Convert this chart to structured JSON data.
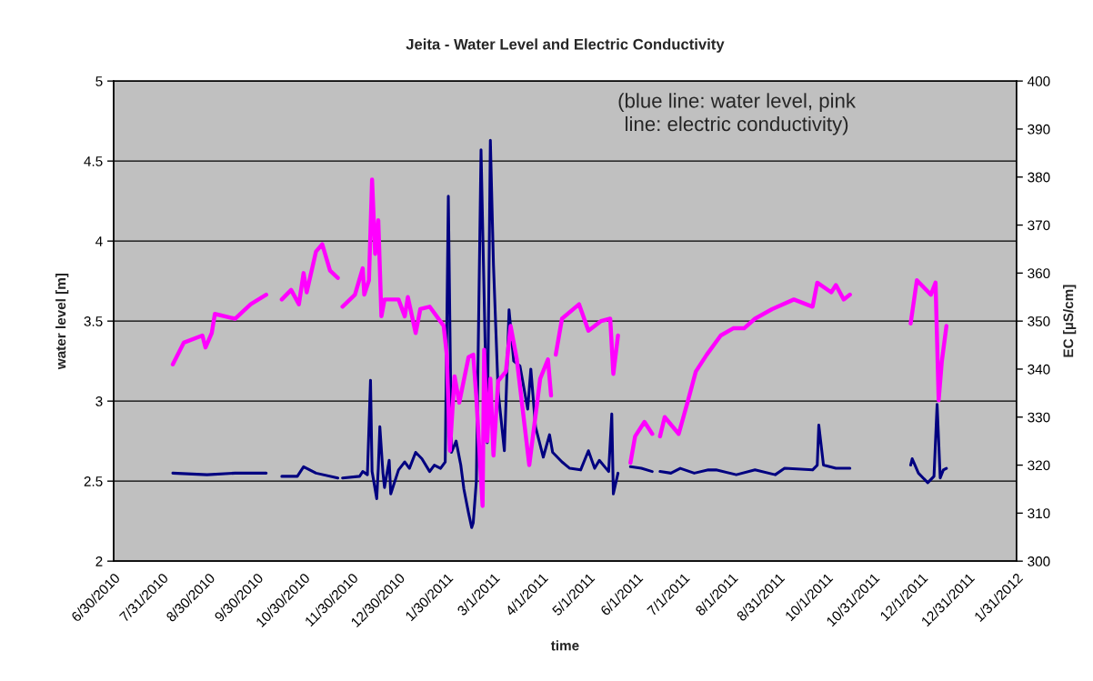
{
  "chart_data": {
    "type": "line",
    "title": "Jeita - Water Level and Electric Conductivity",
    "xlabel": "time",
    "ylabel": "water level [m]",
    "y2label": "EC [µS/cm]",
    "annotations": [
      "(blue line: water level, pink\nline: electric conductivity)"
    ],
    "xlim": [
      "2010-06-30",
      "2012-01-31"
    ],
    "xticks": [
      {
        "value": "2010-06-30",
        "label": "6/30/2010"
      },
      {
        "value": "2010-07-31",
        "label": "7/31/2010"
      },
      {
        "value": "2010-08-30",
        "label": "8/30/2010"
      },
      {
        "value": "2010-09-30",
        "label": "9/30/2010"
      },
      {
        "value": "2010-10-30",
        "label": "10/30/2010"
      },
      {
        "value": "2010-11-30",
        "label": "11/30/2010"
      },
      {
        "value": "2010-12-30",
        "label": "12/30/2010"
      },
      {
        "value": "2011-01-30",
        "label": "1/30/2011"
      },
      {
        "value": "2011-03-01",
        "label": "3/1/2011"
      },
      {
        "value": "2011-04-01",
        "label": "4/1/2011"
      },
      {
        "value": "2011-05-01",
        "label": "5/1/2011"
      },
      {
        "value": "2011-06-01",
        "label": "6/1/2011"
      },
      {
        "value": "2011-07-01",
        "label": "7/1/2011"
      },
      {
        "value": "2011-08-01",
        "label": "8/1/2011"
      },
      {
        "value": "2011-08-31",
        "label": "8/31/2011"
      },
      {
        "value": "2011-10-01",
        "label": "10/1/2011"
      },
      {
        "value": "2011-10-31",
        "label": "10/31/2011"
      },
      {
        "value": "2011-12-01",
        "label": "12/1/2011"
      },
      {
        "value": "2011-12-31",
        "label": "12/31/2011"
      },
      {
        "value": "2012-01-31",
        "label": "1/31/2012"
      }
    ],
    "ylim": [
      2,
      5
    ],
    "yticks": [
      2,
      2.5,
      3,
      3.5,
      4,
      4.5,
      5
    ],
    "y2lim": [
      300,
      400
    ],
    "y2ticks": [
      300,
      310,
      320,
      330,
      340,
      350,
      360,
      370,
      380,
      390,
      400
    ],
    "grid": "y",
    "marker": "none",
    "line_style": "solid",
    "series": [
      {
        "color": "#000080",
        "x": [
          "2010-08-07",
          "2010-08-29",
          "2010-09-16",
          "2010-10-06",
          "2010-10-11",
          "2010-10-16",
          "2010-10-26",
          "2010-10-30",
          "2010-11-07",
          "2010-11-21",
          "2010-11-23",
          "2010-11-24",
          "2010-12-05",
          "2010-12-07",
          "2010-12-10",
          "2010-12-12",
          "2010-12-13",
          "2010-12-16",
          "2010-12-17",
          "2010-12-18",
          "2010-12-20",
          "2010-12-21",
          "2010-12-24",
          "2010-12-25",
          "2010-12-30",
          "2011-01-03",
          "2011-01-06",
          "2011-01-10",
          "2011-01-14",
          "2011-01-19",
          "2011-01-22",
          "2011-01-26",
          "2011-01-29",
          "2011-01-31",
          "2011-02-02",
          "2011-02-05",
          "2011-02-08",
          "2011-02-10",
          "2011-02-13",
          "2011-02-15",
          "2011-02-16",
          "2011-02-18",
          "2011-02-21",
          "2011-02-25",
          "2011-02-27",
          "2011-03-01",
          "2011-03-04",
          "2011-03-08",
          "2011-03-11",
          "2011-03-14",
          "2011-03-18",
          "2011-03-23",
          "2011-03-25",
          "2011-03-28",
          "2011-04-02",
          "2011-04-06",
          "2011-04-08",
          "2011-04-14",
          "2011-04-19",
          "2011-04-26",
          "2011-05-01",
          "2011-05-05",
          "2011-05-08",
          "2011-05-14",
          "2011-05-16",
          "2011-05-17",
          "2011-05-20",
          "2011-05-24",
          "2011-05-28",
          "2011-06-04",
          "2011-06-11",
          "2011-06-13",
          "2011-06-16",
          "2011-06-23",
          "2011-06-29",
          "2011-07-08",
          "2011-07-17",
          "2011-07-22",
          "2011-08-04",
          "2011-08-16",
          "2011-08-29",
          "2011-09-04",
          "2011-09-22",
          "2011-09-25",
          "2011-09-26",
          "2011-09-29",
          "2011-10-07",
          "2011-10-16",
          "2011-11-05",
          "2011-11-24",
          "2011-11-25",
          "2011-11-29",
          "2011-12-05",
          "2011-12-09",
          "2011-12-11",
          "2011-12-13",
          "2011-12-15",
          "2011-12-17"
        ],
        "values": [
          2.55,
          2.54,
          2.55,
          2.55,
          null,
          2.53,
          2.53,
          2.59,
          2.55,
          2.52,
          null,
          2.52,
          2.53,
          2.56,
          2.54,
          3.13,
          2.56,
          2.39,
          2.58,
          2.84,
          2.55,
          2.46,
          2.63,
          2.42,
          2.57,
          2.62,
          2.58,
          2.68,
          2.64,
          2.56,
          2.6,
          2.58,
          2.62,
          4.28,
          2.68,
          2.75,
          2.6,
          2.45,
          2.3,
          2.21,
          2.24,
          2.5,
          4.57,
          2.74,
          4.63,
          3.85,
          3.06,
          2.69,
          3.57,
          3.25,
          3.22,
          2.95,
          3.2,
          2.84,
          2.65,
          2.79,
          2.68,
          2.62,
          2.58,
          2.57,
          2.69,
          2.58,
          2.63,
          2.56,
          2.92,
          2.42,
          2.55,
          null,
          2.59,
          2.58,
          2.56,
          null,
          2.56,
          2.55,
          2.58,
          2.55,
          2.57,
          2.57,
          2.54,
          2.57,
          2.54,
          2.58,
          2.57,
          2.6,
          2.85,
          2.6,
          2.58,
          2.58,
          null,
          2.6,
          2.64,
          2.55,
          2.49,
          2.53,
          2.98,
          2.52,
          2.57,
          2.58
        ]
      },
      {
        "color": "#ff00ff",
        "axis": "y2",
        "x": [
          "2010-08-07",
          "2010-08-14",
          "2010-08-26",
          "2010-08-28",
          "2010-09-01",
          "2010-09-03",
          "2010-09-16",
          "2010-09-26",
          "2010-10-06",
          "2010-10-11",
          "2010-10-16",
          "2010-10-22",
          "2010-10-27",
          "2010-10-30",
          "2010-11-01",
          "2010-11-07",
          "2010-11-11",
          "2010-11-16",
          "2010-11-21",
          "2010-11-23",
          "2010-11-24",
          "2010-12-02",
          "2010-12-07",
          "2010-12-08",
          "2010-12-11",
          "2010-12-13",
          "2010-12-15",
          "2010-12-17",
          "2010-12-19",
          "2010-12-21",
          "2010-12-30",
          "2011-01-03",
          "2011-01-05",
          "2011-01-10",
          "2011-01-13",
          "2011-01-19",
          "2011-01-28",
          "2011-01-30",
          "2011-02-01",
          "2011-02-04",
          "2011-02-07",
          "2011-02-13",
          "2011-02-16",
          "2011-02-18",
          "2011-02-22",
          "2011-02-23",
          "2011-02-25",
          "2011-02-27",
          "2011-03-01",
          "2011-03-04",
          "2011-03-09",
          "2011-03-12",
          "2011-03-16",
          "2011-03-24",
          "2011-03-31",
          "2011-04-05",
          "2011-04-07",
          "2011-04-09",
          "2011-04-10",
          "2011-04-14",
          "2011-04-25",
          "2011-05-01",
          "2011-05-09",
          "2011-05-15",
          "2011-05-17",
          "2011-05-20",
          "2011-05-24",
          "2011-05-28",
          "2011-05-31",
          "2011-06-06",
          "2011-06-11",
          "2011-06-13",
          "2011-06-16",
          "2011-06-19",
          "2011-06-28",
          "2011-07-04",
          "2011-07-09",
          "2011-07-16",
          "2011-07-25",
          "2011-08-02",
          "2011-08-09",
          "2011-08-16",
          "2011-08-27",
          "2011-09-10",
          "2011-09-22",
          "2011-09-25",
          "2011-10-04",
          "2011-10-07",
          "2011-10-12",
          "2011-10-16",
          "2011-11-05",
          "2011-11-24",
          "2011-11-28",
          "2011-12-07",
          "2011-12-10",
          "2011-12-12",
          "2011-12-14",
          "2011-12-17"
        ],
        "values": [
          341,
          345.5,
          347,
          344.5,
          347.5,
          351.5,
          350.5,
          353.5,
          355.5,
          null,
          354.5,
          356.5,
          353.5,
          360,
          356,
          364.5,
          366,
          360.5,
          359,
          null,
          353,
          355.5,
          361,
          355.5,
          358.5,
          379.5,
          364,
          371,
          351,
          354.5,
          354.5,
          351,
          355,
          347.5,
          352.5,
          353,
          349,
          343,
          323,
          338.5,
          333,
          342.5,
          343,
          334,
          311.5,
          344,
          325,
          338,
          322,
          337.5,
          339.5,
          349,
          342,
          320,
          338,
          342,
          334.5,
          null,
          343,
          350.5,
          353.5,
          348,
          350,
          350.5,
          339,
          347,
          null,
          320.5,
          326,
          329,
          326.5,
          null,
          326,
          330,
          326.5,
          333.5,
          339.5,
          343,
          347,
          348.5,
          348.5,
          350.5,
          352.5,
          354.5,
          353,
          358,
          356,
          357.5,
          354.5,
          355.5,
          null,
          349.5,
          358.5,
          355.5,
          358,
          333.5,
          341.5,
          349
        ]
      }
    ]
  }
}
